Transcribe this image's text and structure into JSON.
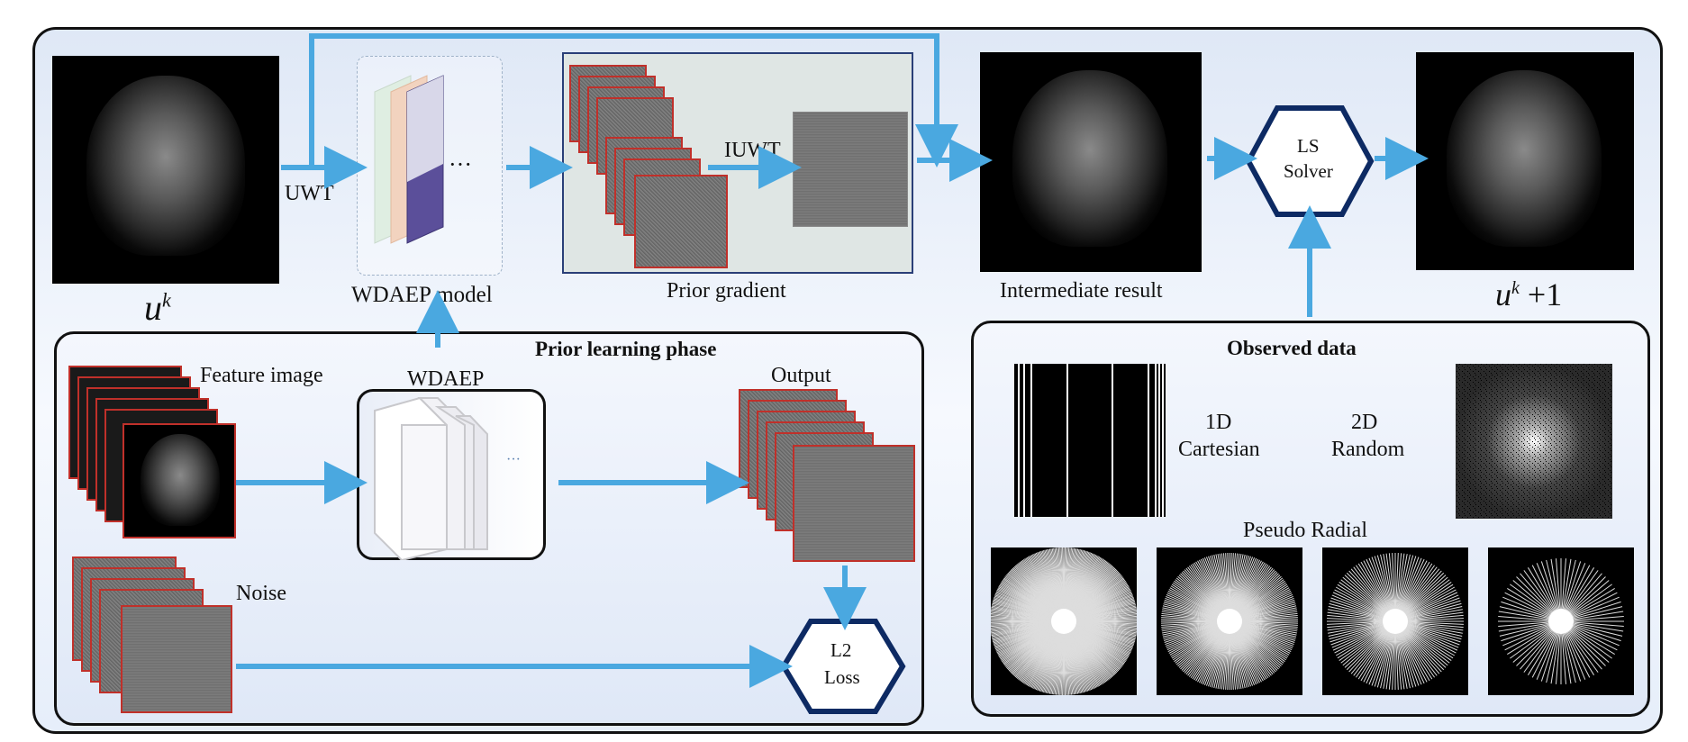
{
  "top": {
    "uwt_label": "UWT",
    "uk_label_main": "u",
    "uk_label_sup": "k",
    "model_caption": "WDAEP model",
    "model_dots": "···",
    "iuwt_label": "IUWT",
    "prior_gradient_caption": "Prior gradient",
    "intermediate_caption": "Intermediate result",
    "solver_line1": "LS",
    "solver_line2": "Solver",
    "uk1_label_main": "u",
    "uk1_label_sup": "k",
    "uk1_label_suffix": " +1"
  },
  "prior_phase": {
    "title": "Prior learning phase",
    "feature_label": "Feature image",
    "network_label": "WDAEP",
    "network_dots": "···",
    "output_label": "Output",
    "noise_label": "Noise",
    "loss_line1": "L2",
    "loss_line2": "Loss"
  },
  "observed": {
    "title": "Observed data",
    "mask1_line1": "1D",
    "mask1_line2": "Cartesian",
    "mask2_line1": "2D",
    "mask2_line2": "Random",
    "radial_label": "Pseudo Radial"
  },
  "colors": {
    "arrow": "#4aa8e0",
    "hexagon_border": "#0d2a63",
    "noise_border": "#c0302a",
    "panel_border": "#111111"
  }
}
